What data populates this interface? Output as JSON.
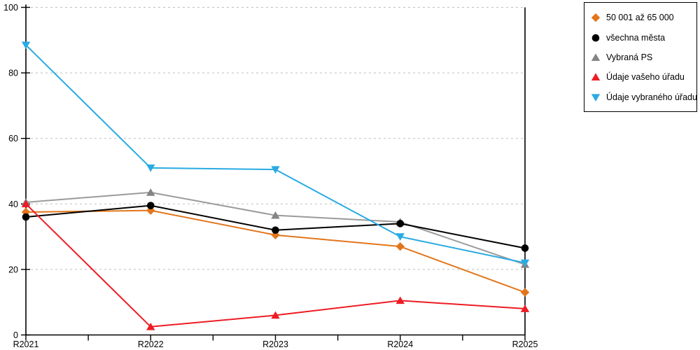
{
  "chart_data": {
    "type": "line",
    "title": "",
    "xlabel": "",
    "ylabel": "",
    "categories": [
      "R2021",
      "R2022",
      "R2023",
      "R2024",
      "R2025"
    ],
    "series": [
      {
        "name": "50 001 až 65 000",
        "marker": "diamond",
        "color": "#E2761B",
        "values": [
          37.5,
          38,
          30.5,
          27,
          13
        ]
      },
      {
        "name": "všechna města",
        "marker": "circle",
        "color": "#000000",
        "values": [
          36,
          39.5,
          32,
          34,
          26.5
        ]
      },
      {
        "name": "Vybraná PS",
        "marker": "triangle-up",
        "color": "#848484",
        "line_color": "#9B9B9B",
        "values": [
          40.5,
          43.5,
          36.5,
          34.5,
          21.5
        ]
      },
      {
        "name": "Údaje vašeho úřadu",
        "marker": "triangle-up",
        "color": "#ED1C24",
        "values": [
          40,
          2.5,
          6,
          10.5,
          8
        ]
      },
      {
        "name": "Údaje vybraného úřadu",
        "marker": "triangle-down",
        "color": "#29ABE2",
        "values": [
          88.5,
          51,
          50.5,
          30,
          22
        ]
      }
    ],
    "ylim": [
      0,
      100
    ],
    "y_ticks": [
      "0",
      "20",
      "40",
      "60",
      "80",
      "100"
    ],
    "grid": "horizontal-dashed",
    "gridline_color": "#BFBFBF",
    "axis_color": "#000000",
    "legend_position": "top-right",
    "background_color": "#FFFFFF"
  }
}
